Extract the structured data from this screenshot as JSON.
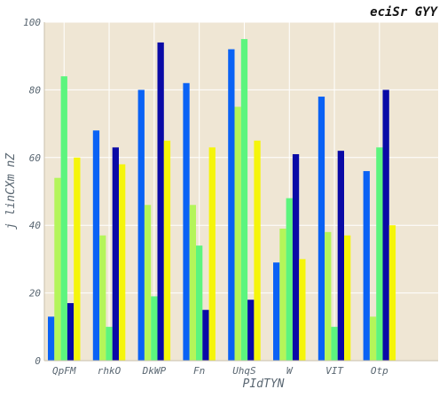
{
  "chart_data": {
    "type": "bar",
    "title": "eciSr GYY",
    "xlabel": "PIdTYN",
    "ylabel": "j linCXm nZ",
    "ylim": [
      0,
      100
    ],
    "yticks": [
      0,
      20,
      40,
      60,
      80,
      100
    ],
    "grid": true,
    "legend": "none",
    "categories": [
      "QpFM",
      "rhkO",
      "DkWP",
      "Fn",
      "UhqS",
      "W",
      "VIT",
      "Otp"
    ],
    "series": [
      {
        "color": "#0a62f5",
        "values": [
          13,
          68,
          80,
          82,
          92,
          29,
          78,
          56
        ]
      },
      {
        "color": "#b4f55a",
        "values": [
          54,
          37,
          46,
          46,
          75,
          39,
          38,
          13
        ]
      },
      {
        "color": "#5cf57e",
        "values": [
          84,
          10,
          19,
          34,
          95,
          48,
          10,
          63
        ]
      },
      {
        "color": "#0a0aa6",
        "values": [
          17,
          63,
          94,
          15,
          18,
          61,
          62,
          80
        ]
      },
      {
        "color": "#f5f50a",
        "values": [
          60,
          58,
          65,
          63,
          65,
          30,
          37,
          40
        ]
      }
    ],
    "background": "#efe6d4",
    "gridColor": "#ffffff"
  }
}
